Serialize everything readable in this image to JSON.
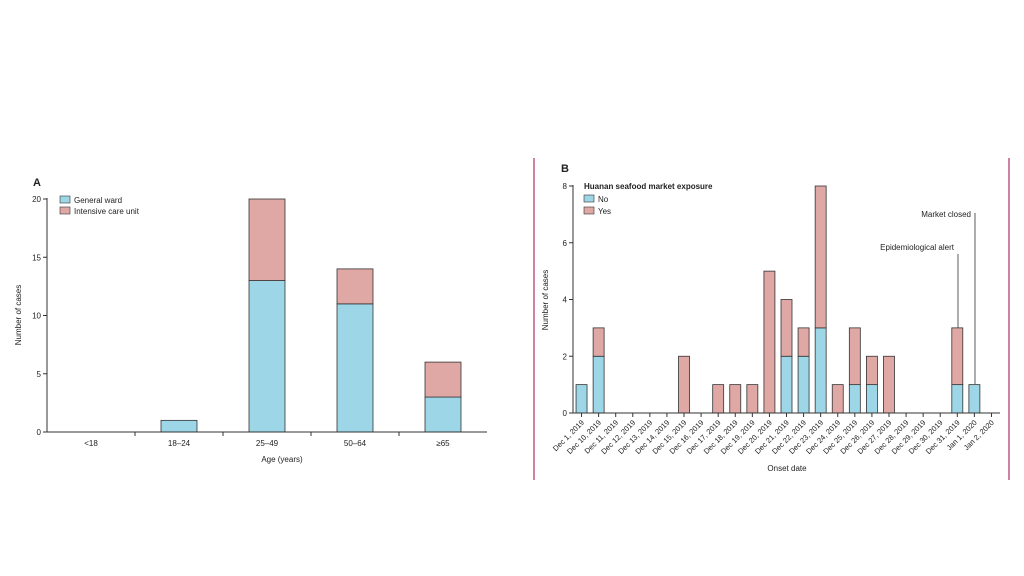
{
  "colors": {
    "general_ward": "#9dd6e6",
    "icu": "#e0a8a4",
    "divider": "#b0306a",
    "axis": "#333333"
  },
  "chart_data": [
    {
      "panel": "A",
      "type": "bar",
      "stacked": true,
      "categories": [
        "<18",
        "18–24",
        "25–49",
        "50–64",
        "≥65"
      ],
      "series": [
        {
          "name": "General ward",
          "values": [
            0,
            1,
            13,
            11,
            3
          ]
        },
        {
          "name": "Intensive care unit",
          "values": [
            0,
            0,
            7,
            3,
            3
          ]
        }
      ],
      "xlabel": "Age (years)",
      "ylabel": "Number of cases",
      "ylim": [
        0,
        20
      ],
      "yticks": [
        0,
        5,
        10,
        15,
        20
      ],
      "legend": "top-left",
      "grid": false
    },
    {
      "panel": "B",
      "type": "bar",
      "stacked": true,
      "categories": [
        "Dec 1, 2019",
        "Dec 10, 2019",
        "Dec 11, 2019",
        "Dec 12, 2019",
        "Dec 13, 2019",
        "Dec 14, 2019",
        "Dec 15, 2019",
        "Dec 16, 2019",
        "Dec 17, 2019",
        "Dec 18, 2019",
        "Dec 19, 2019",
        "Dec 20, 2019",
        "Dec 21, 2019",
        "Dec 22, 2019",
        "Dec 23, 2019",
        "Dec 24, 2019",
        "Dec 25, 2019",
        "Dec 26, 2019",
        "Dec 27, 2019",
        "Dec 28, 2019",
        "Dec 29, 2019",
        "Dec 30, 2019",
        "Dec 31, 2019",
        "Jan 1, 2020",
        "Jan 2, 2020"
      ],
      "legend_title": "Huanan seafood market exposure",
      "series": [
        {
          "name": "No",
          "values": [
            1,
            2,
            0,
            0,
            0,
            0,
            0,
            0,
            0,
            0,
            0,
            0,
            2,
            2,
            3,
            0,
            1,
            1,
            0,
            0,
            0,
            0,
            1,
            1,
            0
          ]
        },
        {
          "name": "Yes",
          "values": [
            0,
            1,
            0,
            0,
            0,
            0,
            2,
            0,
            1,
            1,
            1,
            5,
            2,
            1,
            5,
            1,
            2,
            1,
            2,
            0,
            0,
            0,
            2,
            0,
            0
          ]
        }
      ],
      "xlabel": "Onset date",
      "ylabel": "Number of cases",
      "ylim": [
        0,
        8
      ],
      "yticks": [
        0,
        2,
        4,
        6,
        8
      ],
      "legend": "top-left",
      "grid": false,
      "annotations": [
        {
          "text": "Epidemiological alert",
          "date": "Dec 31, 2019"
        },
        {
          "text": "Market closed",
          "date": "Jan 1, 2020"
        }
      ]
    }
  ]
}
